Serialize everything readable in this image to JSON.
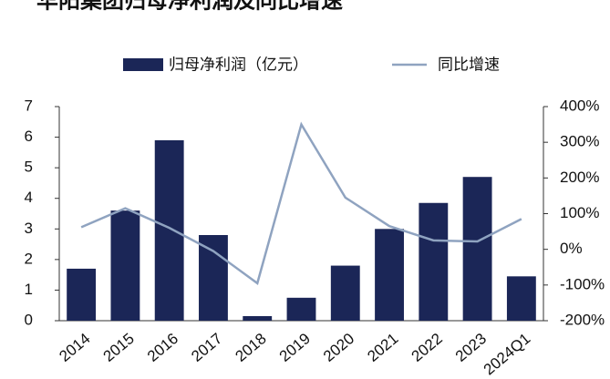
{
  "chart_data": {
    "type": "bar-line",
    "title": "华阳集团归母净利润及同比增速",
    "categories": [
      "2014",
      "2015",
      "2016",
      "2017",
      "2018",
      "2019",
      "2020",
      "2021",
      "2022",
      "2023",
      "2024Q1"
    ],
    "series": [
      {
        "name": "归母净利润（亿元）",
        "type": "bar",
        "color": "#1b2657",
        "values": [
          1.7,
          3.6,
          5.9,
          2.8,
          0.15,
          0.75,
          1.8,
          3.0,
          3.85,
          4.7,
          1.45
        ]
      },
      {
        "name": "同比增速",
        "type": "line",
        "axis": "y2",
        "color": "#8fa3c0",
        "values": [
          62,
          115,
          60,
          -5,
          -95,
          350,
          145,
          65,
          25,
          22,
          85
        ]
      }
    ],
    "ylim": [
      0,
      7
    ],
    "yticks": [
      0,
      1,
      2,
      3,
      4,
      5,
      6,
      7
    ],
    "y2lim": [
      -200,
      400
    ],
    "y2ticks": [
      {
        "value": -200,
        "label": "-200%"
      },
      {
        "value": -100,
        "label": "-100%"
      },
      {
        "value": 0,
        "label": "0%"
      },
      {
        "value": 100,
        "label": "100%"
      },
      {
        "value": 200,
        "label": "200%"
      },
      {
        "value": 300,
        "label": "300%"
      },
      {
        "value": 400,
        "label": "400%"
      }
    ]
  }
}
